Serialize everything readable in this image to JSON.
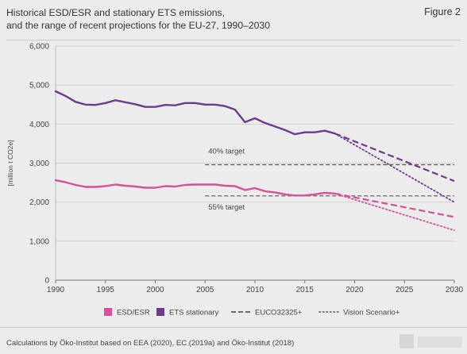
{
  "header": {
    "title_line1": "Historical ESD/ESR and stationary ETS emissions,",
    "title_line2": "and the range of recent projections for the EU-27, 1990–2030",
    "figure_label": "Figure 2"
  },
  "source": "Calculations by Öko-Institut based on EEA (2020), EC (2019a) and Öko-Institut (2018)",
  "colors": {
    "esd": "#d64f98",
    "ets": "#6b3b8e",
    "target_line": "#555555",
    "grid": "#d2d2d2"
  },
  "chart_data": {
    "type": "line",
    "ylabel": "[million t CO2e]",
    "ylim": [
      0,
      6000
    ],
    "xlim": [
      1990,
      2030
    ],
    "yticks": [
      0,
      1000,
      2000,
      3000,
      4000,
      5000,
      6000
    ],
    "ytick_labels": [
      "0",
      "1,000",
      "2,000",
      "3,000",
      "4,000",
      "5,000",
      "6,000"
    ],
    "xticks": [
      1990,
      1995,
      2000,
      2005,
      2010,
      2015,
      2020,
      2025,
      2030
    ],
    "series": [
      {
        "name": "ESD/ESR",
        "style": "solid",
        "x": [
          1990,
          1991,
          1992,
          1993,
          1994,
          1995,
          1996,
          1997,
          1998,
          1999,
          2000,
          2001,
          2002,
          2003,
          2004,
          2005,
          2006,
          2007,
          2008,
          2009,
          2010,
          2011,
          2012,
          2013,
          2014,
          2015,
          2016,
          2017,
          2018
        ],
        "y": [
          2560,
          2510,
          2440,
          2390,
          2390,
          2410,
          2450,
          2420,
          2400,
          2370,
          2370,
          2410,
          2400,
          2440,
          2450,
          2450,
          2450,
          2420,
          2410,
          2310,
          2360,
          2280,
          2250,
          2200,
          2170,
          2170,
          2200,
          2240,
          2220
        ]
      },
      {
        "name": "ETS stationary",
        "style": "solid",
        "x": [
          1990,
          1991,
          1992,
          1993,
          1994,
          1995,
          1996,
          1997,
          1998,
          1999,
          2000,
          2001,
          2002,
          2003,
          2004,
          2005,
          2006,
          2007,
          2008,
          2009,
          2010,
          2011,
          2012,
          2013,
          2014,
          2015,
          2016,
          2017,
          2018
        ],
        "y": [
          4840,
          4720,
          4570,
          4500,
          4490,
          4540,
          4610,
          4560,
          4510,
          4440,
          4440,
          4490,
          4480,
          4540,
          4540,
          4500,
          4500,
          4460,
          4370,
          4050,
          4150,
          4030,
          3940,
          3850,
          3740,
          3790,
          3790,
          3830,
          3760
        ]
      },
      {
        "name": "EUCO32325+",
        "style": "dashed",
        "x": [
          2018,
          2030
        ],
        "y": [
          3760,
          2540
        ]
      },
      {
        "name": "EUCO32325+",
        "style": "dashed",
        "x": [
          2018,
          2030
        ],
        "y": [
          2220,
          1620
        ]
      },
      {
        "name": "Vision Scenario+",
        "style": "dotted",
        "x": [
          2018,
          2030
        ],
        "y": [
          3760,
          2000
        ]
      },
      {
        "name": "Vision Scenario+",
        "style": "dotted",
        "x": [
          2018,
          2030
        ],
        "y": [
          2220,
          1280
        ]
      }
    ],
    "reference_lines": [
      {
        "label": "40% target",
        "y": 2960,
        "x_from": 2005,
        "x_to": 2030
      },
      {
        "label": "55% target",
        "y": 2160,
        "x_from": 2005,
        "x_to": 2030
      }
    ],
    "legend": [
      {
        "label": "ESD/ESR",
        "kind": "swatch",
        "color": "#d64f98"
      },
      {
        "label": "ETS stationary",
        "kind": "swatch",
        "color": "#6b3b8e"
      },
      {
        "label": "EUCO32325+",
        "kind": "dashed"
      },
      {
        "label": "Vision Scenario+",
        "kind": "dotted"
      }
    ],
    "legend_position": "bottom",
    "grid": true
  }
}
